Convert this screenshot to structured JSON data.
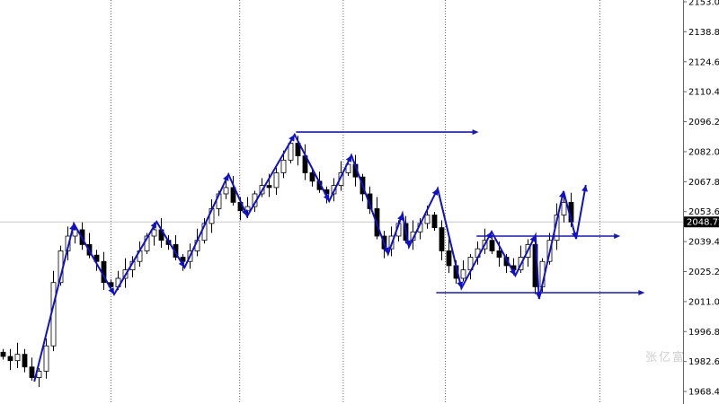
{
  "chart_data": {
    "type": "candlestick",
    "title": "",
    "xlabel": "",
    "ylabel": "",
    "ylim": [
      1965.0,
      2153.0
    ],
    "grid": "vertical dotted",
    "y_ticks": [
      "2153.00",
      "2138.80",
      "2124.60",
      "2110.40",
      "2096.20",
      "2082.00",
      "2067.80",
      "2053.60",
      "2039.40",
      "2025.20",
      "2011.00",
      "1996.80",
      "1982.60",
      "1968.40"
    ],
    "current_price": "2048.72",
    "close": [
      1985,
      1983,
      1986,
      1980,
      1975,
      1978,
      1990,
      2020,
      2035,
      2042,
      2045,
      2038,
      2033,
      2030,
      2020,
      2018,
      2022,
      2026,
      2030,
      2035,
      2042,
      2045,
      2040,
      2038,
      2032,
      2030,
      2035,
      2040,
      2048,
      2055,
      2062,
      2065,
      2058,
      2054,
      2056,
      2062,
      2066,
      2065,
      2072,
      2078,
      2086,
      2080,
      2072,
      2068,
      2064,
      2062,
      2066,
      2072,
      2076,
      2070,
      2062,
      2055,
      2042,
      2036,
      2042,
      2048,
      2040,
      2044,
      2048,
      2052,
      2046,
      2035,
      2028,
      2022,
      2026,
      2032,
      2036,
      2040,
      2035,
      2032,
      2028,
      2026,
      2032,
      2038,
      2018,
      2030,
      2040,
      2052,
      2058,
      2048.72
    ],
    "zigzag": [
      [
        4.4,
        1973.1
      ],
      [
        9.9,
        2047.9
      ],
      [
        15.5,
        2014.4
      ],
      [
        21.4,
        2048.8
      ],
      [
        25.3,
        2027.1
      ],
      [
        31.4,
        2071.3
      ],
      [
        34,
        2051.4
      ],
      [
        40.6,
        2090.1
      ],
      [
        45.4,
        2058.6
      ],
      [
        48.5,
        2080.3
      ],
      [
        53.6,
        2033.5
      ],
      [
        55.6,
        2052.6
      ],
      [
        56.5,
        2036.9
      ],
      [
        60.5,
        2064.5
      ],
      [
        63.8,
        2017.3
      ],
      [
        68,
        2044.1
      ],
      [
        71.3,
        2023.3
      ],
      [
        74.1,
        2042.4
      ],
      [
        74.6,
        2012.2
      ],
      [
        78,
        2063.3
      ],
      [
        79.75,
        2040.7
      ],
      [
        81.1,
        2066.2
      ]
    ],
    "levels": [
      {
        "price": 2091.3,
        "from": 40.8,
        "to": 66.2
      },
      {
        "price": 2042.0,
        "from": 65.9,
        "to": 85.9
      },
      {
        "price": 2015.2,
        "from": 60.3,
        "to": 89.3
      }
    ],
    "session_separators": [
      15,
      32.9,
      47.3,
      61.5,
      83
    ],
    "colors": {
      "zigzag": "#1010c8",
      "levels": "#1a1aa8",
      "bull": "#ffffff",
      "bear": "#000000",
      "price_label_bg": "#000000"
    },
    "watermark": "张亿富"
  }
}
